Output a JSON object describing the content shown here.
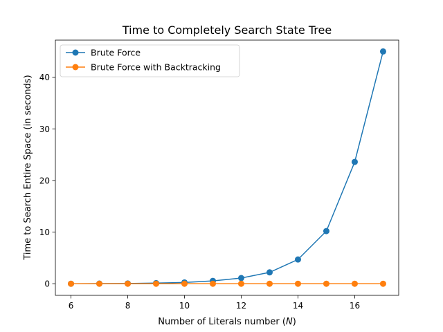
{
  "chart_data": {
    "type": "line",
    "title": "Time to Completely Search State Tree",
    "xlabel_prefix": "Number of Literals number (",
    "xlabel_var": "N",
    "xlabel_suffix": ")",
    "ylabel": "Time to Search Entire Space (in seconds)",
    "xlim": [
      5.45,
      17.55
    ],
    "ylim": [
      -2.25,
      47.2
    ],
    "xticks": [
      6,
      8,
      10,
      12,
      14,
      16
    ],
    "yticks": [
      0,
      10,
      20,
      30,
      40
    ],
    "legend_position": "top-left",
    "x": [
      6,
      7,
      8,
      9,
      10,
      11,
      12,
      13,
      14,
      15,
      16,
      17
    ],
    "series": [
      {
        "name": "Brute Force",
        "color": "#1f77b4",
        "marker": "circle",
        "values": [
          0.0,
          0.02,
          0.05,
          0.12,
          0.25,
          0.55,
          1.1,
          2.2,
          4.7,
          10.2,
          23.6,
          45.0
        ]
      },
      {
        "name": "Brute Force with Backtracking",
        "color": "#ff7f0e",
        "marker": "circle",
        "values": [
          0.0,
          0.0,
          0.0,
          0.0,
          0.0,
          0.0,
          0.0,
          0.0,
          0.0,
          0.0,
          0.0,
          0.0
        ]
      }
    ]
  }
}
